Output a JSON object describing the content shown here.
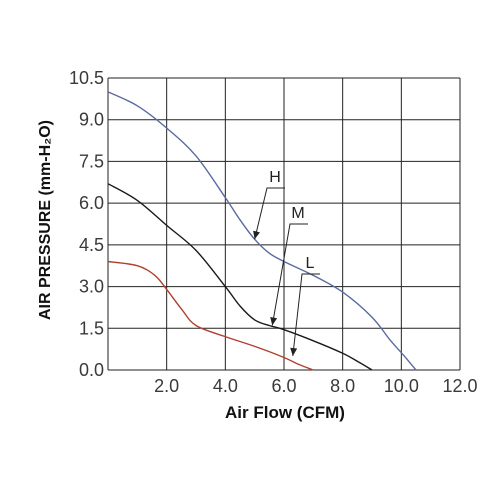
{
  "chart_data": {
    "type": "line",
    "xlabel": "Air Flow (CFM)",
    "ylabel": "AIR PRESSURE (mm-H₂O)",
    "xlim": [
      0,
      12.0
    ],
    "ylim": [
      0,
      10.5
    ],
    "x_ticks": [
      "2.0",
      "4.0",
      "6.0",
      "8.0",
      "10.0",
      "12.0"
    ],
    "y_ticks": [
      "0.0",
      "1.5",
      "3.0",
      "4.5",
      "6.0",
      "7.5",
      "9.0",
      "10.5"
    ],
    "grid": true,
    "series": [
      {
        "name": "H",
        "color": "#5b6aa0",
        "x": [
          0.0,
          1.0,
          2.0,
          3.0,
          4.0,
          4.5,
          5.0,
          5.5,
          6.0,
          7.0,
          8.0,
          9.0,
          9.6,
          10.1,
          10.5
        ],
        "y": [
          10.0,
          9.5,
          8.7,
          7.7,
          6.2,
          5.4,
          4.7,
          4.2,
          3.9,
          3.4,
          2.8,
          1.9,
          1.1,
          0.5,
          0.0
        ]
      },
      {
        "name": "M",
        "color": "#1a1a1a",
        "x": [
          0.0,
          1.0,
          2.0,
          3.0,
          4.0,
          4.5,
          5.0,
          5.5,
          6.0,
          7.0,
          8.0,
          8.6,
          9.0
        ],
        "y": [
          6.7,
          6.1,
          5.2,
          4.3,
          3.0,
          2.3,
          1.8,
          1.6,
          1.45,
          1.05,
          0.6,
          0.25,
          0.0
        ]
      },
      {
        "name": "L",
        "color": "#b04030",
        "x": [
          0.0,
          1.0,
          1.6,
          2.0,
          2.5,
          3.0,
          4.0,
          5.0,
          6.0,
          6.5,
          7.0
        ],
        "y": [
          3.9,
          3.75,
          3.4,
          2.9,
          2.2,
          1.6,
          1.2,
          0.85,
          0.45,
          0.2,
          0.0
        ]
      }
    ],
    "annotations": [
      {
        "label": "H",
        "target_x": 5.0,
        "target_y": 4.7
      },
      {
        "label": "M",
        "target_x": 5.6,
        "target_y": 1.6
      },
      {
        "label": "L",
        "target_x": 6.3,
        "target_y": 0.5
      }
    ]
  }
}
